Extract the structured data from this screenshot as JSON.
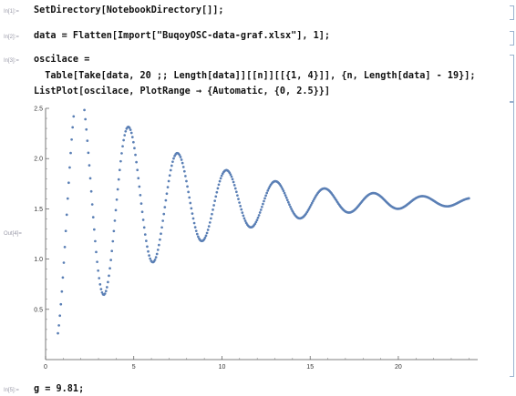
{
  "cells": [
    {
      "label": "In[1]:=",
      "code": "SetDirectory[NotebookDirectory[]];"
    },
    {
      "label": "In[2]:=",
      "code": "data = Flatten[Import[\"BuqoyOSC-data-graf.xlsx\"], 1];"
    },
    {
      "label": "In[3]:=",
      "code": "oscilace =",
      "code2": "  Table[Take[data, 20 ;; Length[data]][[n]][[{1, 4}]], {n, Length[data] - 19}];",
      "code3": "ListPlot[oscilace, PlotRange → {Automatic, {0, 2.5}}]"
    },
    {
      "label": "Out[4]=",
      "code": ""
    },
    {
      "label": "In[5]:=",
      "code": "g = 9.81;"
    }
  ],
  "chart_data": {
    "type": "scatter",
    "title": "",
    "xlabel": "",
    "ylabel": "",
    "xlim": [
      0,
      24.5
    ],
    "ylim": [
      0,
      2.5
    ],
    "xticks": [
      0,
      5,
      10,
      15,
      20
    ],
    "yticks": [
      0.5,
      1.0,
      1.5,
      2.0,
      2.5
    ],
    "xtick_labels": [
      "0",
      "5",
      "10",
      "15",
      "20"
    ],
    "ytick_labels": [
      "0.5",
      "1.0",
      "1.5",
      "2.0",
      "2.5"
    ],
    "point_color": "#5a7fb5",
    "x_start": 0.7,
    "x_end": 24.0,
    "model": {
      "offset": 1.57,
      "amplitude": 1.42,
      "decay": 0.155,
      "period": 2.78,
      "phase_x": 0.55
    },
    "grid": false,
    "legend": "none"
  }
}
